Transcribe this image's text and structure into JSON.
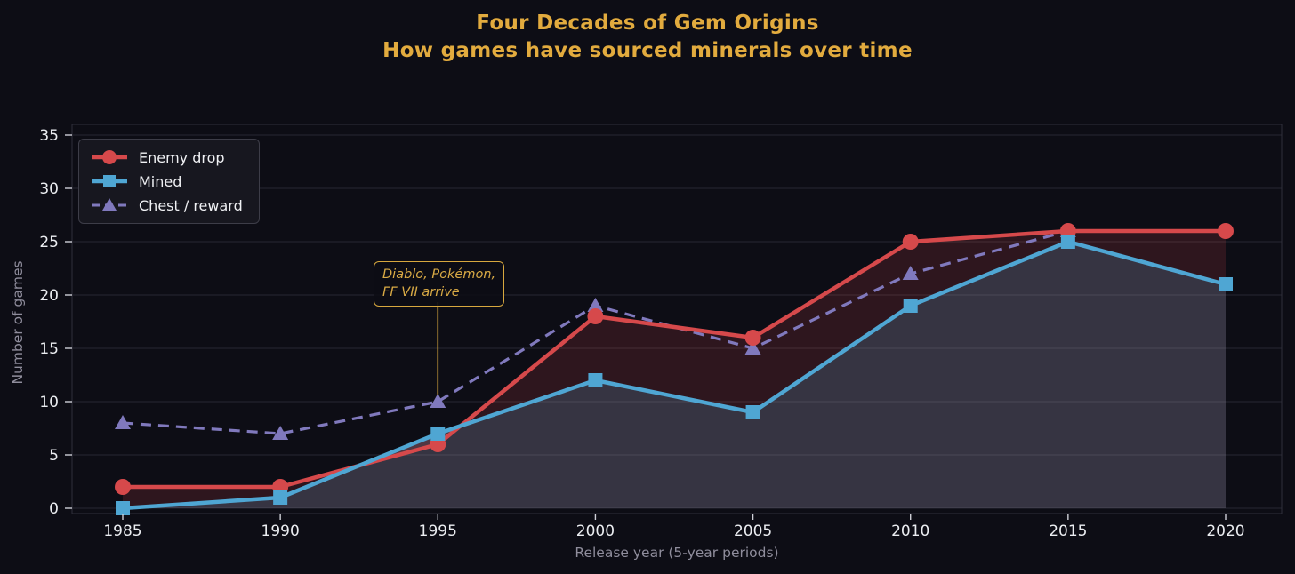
{
  "title": {
    "line1": "Four Decades of Gem Origins",
    "line2": "How games have sourced minerals over time"
  },
  "chart_data": {
    "type": "line",
    "x": [
      1985,
      1990,
      1995,
      2000,
      2005,
      2010,
      2015,
      2020
    ],
    "series": [
      {
        "name": "Enemy drop",
        "marker": "circle",
        "style": "solid",
        "values": [
          2,
          2,
          6,
          18,
          16,
          25,
          26,
          26
        ],
        "fill": "between_this_and_mined"
      },
      {
        "name": "Mined",
        "marker": "square",
        "style": "solid",
        "values": [
          0,
          1,
          7,
          12,
          9,
          19,
          25,
          21
        ],
        "fill": "to_zero"
      },
      {
        "name": "Chest / reward",
        "marker": "triangle",
        "style": "dashed",
        "values": [
          8,
          7,
          10,
          19,
          15,
          22,
          26,
          null
        ]
      }
    ],
    "xlabel": "Release year (5-year periods)",
    "ylabel": "Number of games",
    "y_ticks": [
      0,
      5,
      10,
      15,
      20,
      25,
      30,
      35
    ],
    "ylim": [
      0,
      35
    ],
    "grid": true,
    "legend_position": "upper left"
  },
  "annotation": {
    "line1": "Diablo, Pokémon,",
    "line2": "FF VII arrive",
    "target_year": 1995,
    "target_value": 10
  },
  "colors": {
    "background": "#0d0d15",
    "title": "#e2ab3e",
    "enemy_drop": "#d6494b",
    "mined": "#4fa6d3",
    "chest_reward": "#8079bd",
    "annotation_gold": "#d7a73e",
    "tick_label": "#ebedf1",
    "axis_label": "#8f8d9c",
    "grid": "#23232d",
    "plot_border": "#30303b",
    "legend_bg": "#17171f",
    "legend_border": "#3d3d48",
    "fill_red_area": "rgba(214,73,77,0.17)",
    "fill_blue_area": "rgba(162,156,183,0.28)"
  }
}
